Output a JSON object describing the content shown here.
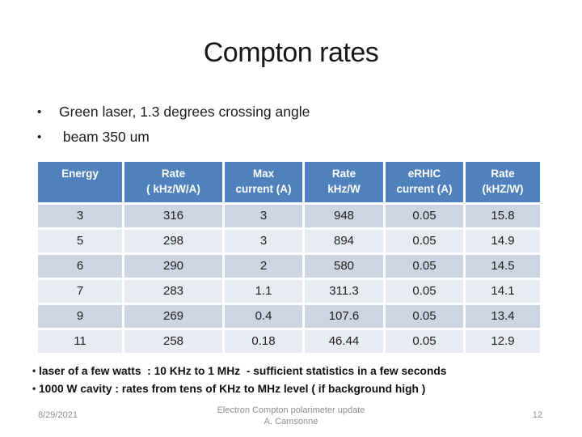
{
  "slide_title": "Compton rates",
  "bullets": [
    {
      "marker": "•",
      "text": "Green laser, 1.3 degrees crossing angle"
    },
    {
      "marker": "•",
      "text": " beam 350 um"
    }
  ],
  "table": {
    "headers": [
      "Energy",
      "Rate\n( kHz/W/A)",
      "Max\ncurrent (A)",
      "Rate\nkHz/W",
      "eRHIC\ncurrent (A)",
      "Rate\n(kHZ/W)"
    ],
    "rows": [
      [
        "3",
        "316",
        "3",
        "948",
        "0.05",
        "15.8"
      ],
      [
        "5",
        "298",
        "3",
        "894",
        "0.05",
        "14.9"
      ],
      [
        "6",
        "290",
        "2",
        "580",
        "0.05",
        "14.5"
      ],
      [
        "7",
        "283",
        "1.1",
        "311.3",
        "0.05",
        "14.1"
      ],
      [
        "9",
        "269",
        "0.4",
        "107.6",
        "0.05",
        "13.4"
      ],
      [
        "11",
        "258",
        "0.18",
        "46.44",
        "0.05",
        "12.9"
      ]
    ]
  },
  "notes": [
    {
      "marker": "•",
      "text": "laser of a few watts  : 10 KHz to 1 MHz  - sufficient statistics in a few seconds"
    },
    {
      "marker": "•",
      "text": "1000 W cavity : rates from tens of KHz to MHz level ( if background high )"
    }
  ],
  "footer": {
    "date": "8/29/2021",
    "attribution_line1": "Electron Compton polarimeter update",
    "attribution_line2": "A. Camsonne",
    "page_number": "12"
  },
  "colors": {
    "header_bg": "#4f81bd",
    "row_band_dark": "#cdd4e2",
    "row_band_light": "#e9ebf2",
    "header_text": "#ffffff",
    "footer_text": "#8e8e8e"
  }
}
